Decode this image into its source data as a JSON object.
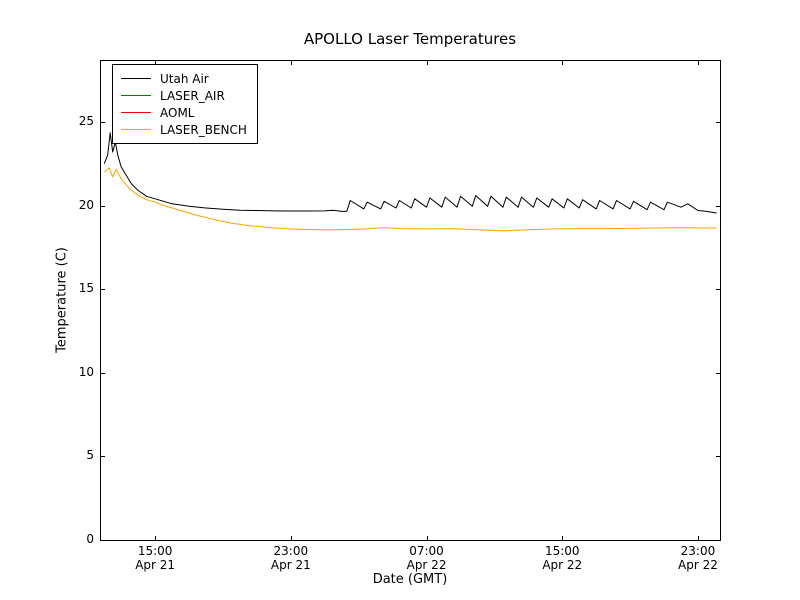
{
  "chart_data": {
    "type": "line",
    "title": "APOLLO Laser Temperatures",
    "xlabel": "Date (GMT)",
    "ylabel": "Temperature (C)",
    "x_unit": "hours since Apr 21 00:00 GMT",
    "xlim": [
      11.75,
      48.3
    ],
    "ylim": [
      0,
      28.7
    ],
    "grid": false,
    "legend_position": "upper left",
    "yticks": [
      0,
      5,
      10,
      15,
      20,
      25
    ],
    "xticks": [
      {
        "x": 15,
        "time": "15:00",
        "date": "Apr 21"
      },
      {
        "x": 23,
        "time": "23:00",
        "date": "Apr 21"
      },
      {
        "x": 31,
        "time": "07:00",
        "date": "Apr 22"
      },
      {
        "x": 39,
        "time": "15:00",
        "date": "Apr 22"
      },
      {
        "x": 47,
        "time": "23:00",
        "date": "Apr 22"
      }
    ],
    "series": [
      {
        "name": "Utah Air",
        "color": "#000000",
        "points": [
          [
            12.0,
            22.5
          ],
          [
            12.2,
            23.0
          ],
          [
            12.35,
            24.35
          ],
          [
            12.5,
            23.2
          ],
          [
            12.65,
            23.8
          ],
          [
            12.8,
            23.0
          ],
          [
            13.0,
            22.3
          ],
          [
            13.3,
            21.8
          ],
          [
            13.6,
            21.3
          ],
          [
            14.0,
            20.9
          ],
          [
            14.5,
            20.55
          ],
          [
            15.0,
            20.4
          ],
          [
            15.5,
            20.25
          ],
          [
            16.0,
            20.1
          ],
          [
            17.0,
            19.95
          ],
          [
            18.0,
            19.85
          ],
          [
            19.0,
            19.78
          ],
          [
            20.0,
            19.72
          ],
          [
            21.0,
            19.7
          ],
          [
            22.0,
            19.68
          ],
          [
            23.0,
            19.67
          ],
          [
            24.0,
            19.67
          ],
          [
            25.0,
            19.68
          ],
          [
            25.5,
            19.72
          ],
          [
            26.0,
            19.65
          ],
          [
            26.3,
            19.65
          ],
          [
            26.5,
            20.3
          ],
          [
            27.3,
            19.8
          ],
          [
            27.5,
            20.2
          ],
          [
            28.3,
            19.8
          ],
          [
            28.5,
            20.25
          ],
          [
            29.2,
            19.85
          ],
          [
            29.4,
            20.3
          ],
          [
            30.1,
            19.85
          ],
          [
            30.3,
            20.4
          ],
          [
            31.0,
            19.9
          ],
          [
            31.2,
            20.45
          ],
          [
            31.9,
            19.9
          ],
          [
            32.1,
            20.5
          ],
          [
            32.8,
            19.9
          ],
          [
            33.0,
            20.55
          ],
          [
            33.7,
            19.95
          ],
          [
            33.9,
            20.6
          ],
          [
            34.6,
            19.95
          ],
          [
            34.8,
            20.55
          ],
          [
            35.5,
            19.9
          ],
          [
            35.7,
            20.5
          ],
          [
            36.4,
            19.9
          ],
          [
            36.6,
            20.5
          ],
          [
            37.3,
            19.9
          ],
          [
            37.5,
            20.45
          ],
          [
            38.2,
            19.9
          ],
          [
            38.4,
            20.4
          ],
          [
            39.1,
            19.85
          ],
          [
            39.3,
            20.4
          ],
          [
            40.0,
            19.85
          ],
          [
            40.2,
            20.35
          ],
          [
            41.0,
            19.8
          ],
          [
            41.2,
            20.3
          ],
          [
            42.0,
            19.8
          ],
          [
            42.2,
            20.3
          ],
          [
            43.0,
            19.8
          ],
          [
            43.2,
            20.25
          ],
          [
            44.0,
            19.75
          ],
          [
            44.2,
            20.2
          ],
          [
            45.0,
            19.75
          ],
          [
            45.2,
            20.2
          ],
          [
            46.0,
            19.9
          ],
          [
            46.4,
            20.1
          ],
          [
            47.0,
            19.7
          ],
          [
            47.5,
            19.65
          ],
          [
            48.1,
            19.55
          ]
        ]
      },
      {
        "name": "LASER_AIR",
        "color": "#008000",
        "points": []
      },
      {
        "name": "AOML",
        "color": "#ff0000",
        "points": []
      },
      {
        "name": "LASER_BENCH",
        "color": "#ffa500",
        "points": [
          [
            12.0,
            22.0
          ],
          [
            12.3,
            22.25
          ],
          [
            12.5,
            21.7
          ],
          [
            12.7,
            22.15
          ],
          [
            13.0,
            21.6
          ],
          [
            13.5,
            21.0
          ],
          [
            14.0,
            20.6
          ],
          [
            14.5,
            20.35
          ],
          [
            15.0,
            20.2
          ],
          [
            15.5,
            20.0
          ],
          [
            16.5,
            19.7
          ],
          [
            17.5,
            19.4
          ],
          [
            18.5,
            19.15
          ],
          [
            19.5,
            18.95
          ],
          [
            20.5,
            18.8
          ],
          [
            21.5,
            18.7
          ],
          [
            22.5,
            18.62
          ],
          [
            23.5,
            18.58
          ],
          [
            24.5,
            18.55
          ],
          [
            26.0,
            18.55
          ],
          [
            27.5,
            18.6
          ],
          [
            28.5,
            18.68
          ],
          [
            29.5,
            18.62
          ],
          [
            31.0,
            18.6
          ],
          [
            32.5,
            18.62
          ],
          [
            34.0,
            18.55
          ],
          [
            35.5,
            18.48
          ],
          [
            37.0,
            18.55
          ],
          [
            38.5,
            18.6
          ],
          [
            40.0,
            18.62
          ],
          [
            42.0,
            18.62
          ],
          [
            44.0,
            18.65
          ],
          [
            46.0,
            18.68
          ],
          [
            48.1,
            18.65
          ]
        ]
      }
    ]
  }
}
